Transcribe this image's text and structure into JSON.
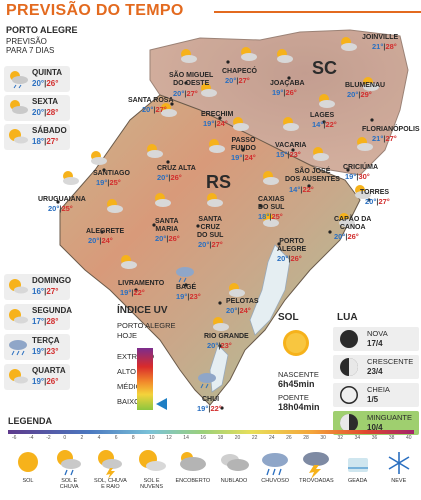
{
  "header": {
    "title": "PREVISÃO DO TEMPO"
  },
  "sidebar": {
    "city": "PORTO ALEGRE",
    "subtitle_1": "PREVISÃO",
    "subtitle_2": "PARA 7 DIAS",
    "days": [
      {
        "name": "QUINTA",
        "min": "20°",
        "max": "26°",
        "icon": "partly-cloudy-rain-icon"
      },
      {
        "name": "SEXTA",
        "min": "20°",
        "max": "28°",
        "icon": "partly-cloudy-icon"
      },
      {
        "name": "SÁBADO",
        "min": "18°",
        "max": "27°",
        "icon": "sun-and-clouds-icon"
      },
      {
        "name": "DOMINGO",
        "min": "16°",
        "max": "27°",
        "icon": "sun-and-clouds-icon"
      },
      {
        "name": "SEGUNDA",
        "min": "17°",
        "max": "28°",
        "icon": "sun-and-clouds-icon"
      },
      {
        "name": "TERÇA",
        "min": "19°",
        "max": "23°",
        "icon": "rain-icon"
      },
      {
        "name": "QUARTA",
        "min": "19°",
        "max": "26°",
        "icon": "sun-and-clouds-icon"
      }
    ]
  },
  "map": {
    "states": {
      "sc": "SC",
      "rs": "RS"
    },
    "cities": [
      {
        "name": "JOINVILLE",
        "min": "21°",
        "max": "28°"
      },
      {
        "name": "SÃO MIGUEL\nDO OESTE",
        "min": "20°",
        "max": "27°"
      },
      {
        "name": "CHAPECÓ",
        "min": "20°",
        "max": "27°"
      },
      {
        "name": "JOAÇABA",
        "min": "19°",
        "max": "26°"
      },
      {
        "name": "BLUMENAU",
        "min": "20°",
        "max": "29°"
      },
      {
        "name": "LAGES",
        "min": "14°",
        "max": "22°"
      },
      {
        "name": "FLORIANÓPOLIS",
        "min": "21°",
        "max": "27°"
      },
      {
        "name": "SANTA ROSA",
        "min": "20°",
        "max": "27°"
      },
      {
        "name": "ERECHIM",
        "min": "19°",
        "max": "24°"
      },
      {
        "name": "PASSO\nFUNDO",
        "min": "19°",
        "max": "24°"
      },
      {
        "name": "VACARIA",
        "min": "15°",
        "max": "23°"
      },
      {
        "name": "CRICIÚMA",
        "min": "19°",
        "max": "30°"
      },
      {
        "name": "SANTIAGO",
        "min": "19°",
        "max": "25°"
      },
      {
        "name": "CRUZ ALTA",
        "min": "20°",
        "max": "26°"
      },
      {
        "name": "SÃO JOSÉ\nDOS AUSENTES",
        "min": "14°",
        "max": "22°"
      },
      {
        "name": "TORRES",
        "min": "20°",
        "max": "27°"
      },
      {
        "name": "URUGUAIANA",
        "min": "20°",
        "max": "25°"
      },
      {
        "name": "CAXIAS\nDO SUL",
        "min": "18°",
        "max": "25°"
      },
      {
        "name": "CAPÃO DA\nCANOA",
        "min": "20°",
        "max": "26°"
      },
      {
        "name": "ALEGRETE",
        "min": "20°",
        "max": "24°"
      },
      {
        "name": "SANTA\nMARIA",
        "min": "20°",
        "max": "26°"
      },
      {
        "name": "SANTA\nCRUZ\nDO SUL",
        "min": "20°",
        "max": "27°"
      },
      {
        "name": "PORTO\nALEGRE",
        "min": "20°",
        "max": "26°"
      },
      {
        "name": "LIVRAMENTO",
        "min": "19°",
        "max": "22°"
      },
      {
        "name": "BAGÉ",
        "min": "19°",
        "max": "23°"
      },
      {
        "name": "PELOTAS",
        "min": "20°",
        "max": "24°"
      },
      {
        "name": "RIO GRANDE",
        "min": "20°",
        "max": "23°"
      },
      {
        "name": "CHUÍ",
        "min": "19°",
        "max": "22°"
      }
    ]
  },
  "uv": {
    "title": "ÍNDICE UV",
    "sub_1": "PORTO ALEGRE",
    "sub_2": "HOJE",
    "levels": [
      "EXTREMO",
      "ALTO",
      "MÉDIO",
      "BAIXO"
    ],
    "current_level": "BAIXO"
  },
  "sun": {
    "title": "SOL",
    "sunrise_label": "NASCENTE",
    "sunrise": "6h45min",
    "sunset_label": "POENTE",
    "sunset": "18h04min"
  },
  "moon": {
    "title": "LUA",
    "phases": [
      {
        "name": "NOVA",
        "date": "17/4",
        "icon": "new-moon-icon"
      },
      {
        "name": "CRESCENTE",
        "date": "23/4",
        "icon": "first-quarter-moon-icon"
      },
      {
        "name": "CHEIA",
        "date": "1/5",
        "icon": "full-moon-icon"
      },
      {
        "name": "MINGUANTE",
        "date": "10/4",
        "icon": "last-quarter-moon-icon"
      }
    ],
    "highlight_color": "#9fcf6f"
  },
  "legend": {
    "title": "LEGENDA",
    "scale": [
      "-6",
      "-4",
      "-2",
      "0",
      "2",
      "4",
      "6",
      "8",
      "10",
      "12",
      "14",
      "16",
      "18",
      "20",
      "22",
      "24",
      "26",
      "28",
      "30",
      "32",
      "34",
      "36",
      "38",
      "40"
    ],
    "items": [
      {
        "label": "SOL",
        "icon": "sun-icon"
      },
      {
        "label": "SOL E\nCHUVA",
        "icon": "sun-and-rain-icon"
      },
      {
        "label": "SOL, CHUVA\nE RAIO",
        "icon": "sun-rain-lightning-icon"
      },
      {
        "label": "SOL E\nNUVENS",
        "icon": "sun-and-clouds-icon"
      },
      {
        "label": "ENCOBERTO",
        "icon": "overcast-icon"
      },
      {
        "label": "NUBLADO",
        "icon": "cloudy-icon"
      },
      {
        "label": "CHUVOSO",
        "icon": "rainy-icon"
      },
      {
        "label": "TROVOADAS",
        "icon": "thunderstorm-icon"
      },
      {
        "label": "GEADA",
        "icon": "frost-icon"
      },
      {
        "label": "NEVE",
        "icon": "snow-icon"
      }
    ]
  },
  "colors": {
    "accent": "#e36a1f",
    "min_temp": "#2a6fc0",
    "max_temp": "#d22d2d",
    "map_low": "#9fc9a0",
    "map_high": "#e6a08a"
  }
}
